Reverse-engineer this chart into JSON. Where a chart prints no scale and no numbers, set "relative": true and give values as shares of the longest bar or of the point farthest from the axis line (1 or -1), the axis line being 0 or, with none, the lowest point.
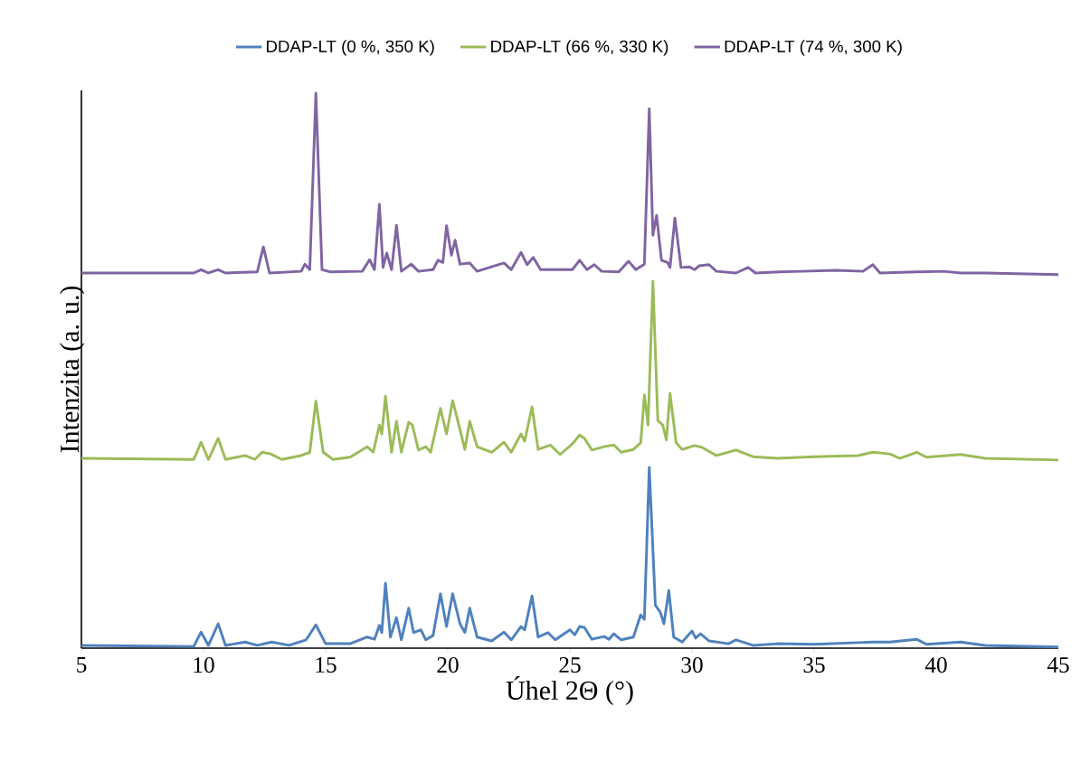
{
  "chart_data": {
    "type": "line",
    "relative": true,
    "xlabel": "Úhel 2Θ (°)",
    "ylabel": "Intenzita (a. u.)",
    "xlim": [
      5,
      45
    ],
    "xticks": [
      5,
      10,
      15,
      20,
      25,
      30,
      35,
      40,
      45
    ],
    "legend": "top",
    "grid": false,
    "series": [
      {
        "name": "DDAP-LT (0 %, 350 K)",
        "color": "#4f81bd",
        "x": [
          5,
          9.6,
          9.9,
          10.2,
          10.6,
          10.9,
          11.7,
          12.2,
          12.8,
          13.5,
          14.2,
          14.6,
          15.0,
          16.0,
          16.7,
          17.0,
          17.2,
          17.3,
          17.45,
          17.65,
          17.9,
          18.1,
          18.4,
          18.6,
          18.9,
          19.1,
          19.4,
          19.7,
          19.95,
          20.2,
          20.5,
          20.7,
          20.9,
          21.2,
          21.8,
          22.3,
          22.6,
          23.0,
          23.15,
          23.45,
          23.7,
          24.1,
          24.4,
          25.0,
          25.2,
          25.4,
          25.6,
          25.9,
          26.4,
          26.6,
          26.8,
          27.1,
          27.6,
          27.9,
          28.05,
          28.25,
          28.5,
          28.7,
          28.85,
          29.05,
          29.25,
          29.6,
          30.0,
          30.15,
          30.35,
          30.7,
          31.5,
          31.8,
          32.5,
          33.5,
          35,
          36.8,
          37.4,
          38.1,
          39.2,
          39.6,
          41,
          42,
          45
        ],
        "values": [
          0.005,
          0.003,
          0.029,
          0.005,
          0.044,
          0.005,
          0.011,
          0.005,
          0.011,
          0.005,
          0.015,
          0.042,
          0.008,
          0.008,
          0.02,
          0.016,
          0.041,
          0.028,
          0.117,
          0.02,
          0.055,
          0.015,
          0.072,
          0.028,
          0.033,
          0.015,
          0.023,
          0.098,
          0.039,
          0.098,
          0.044,
          0.028,
          0.072,
          0.02,
          0.013,
          0.029,
          0.015,
          0.039,
          0.033,
          0.094,
          0.02,
          0.028,
          0.015,
          0.033,
          0.024,
          0.039,
          0.037,
          0.016,
          0.021,
          0.016,
          0.026,
          0.015,
          0.02,
          0.06,
          0.052,
          0.326,
          0.077,
          0.065,
          0.044,
          0.104,
          0.02,
          0.011,
          0.031,
          0.018,
          0.026,
          0.013,
          0.008,
          0.015,
          0.005,
          0.008,
          0.007,
          0.01,
          0.011,
          0.011,
          0.016,
          0.007,
          0.011,
          0.005,
          0.002
        ]
      },
      {
        "name": "DDAP-LT (66 %, 330 K)",
        "color": "#9bbb59",
        "x": [
          5,
          9.6,
          9.9,
          10.2,
          10.6,
          10.9,
          11.7,
          12.1,
          12.4,
          12.75,
          13.2,
          14.0,
          14.35,
          14.6,
          14.9,
          15.3,
          16.0,
          16.7,
          16.95,
          17.2,
          17.3,
          17.45,
          17.7,
          17.9,
          18.1,
          18.4,
          18.55,
          18.8,
          19.1,
          19.3,
          19.7,
          19.95,
          20.2,
          20.5,
          20.7,
          20.9,
          21.2,
          21.8,
          22.3,
          22.6,
          23.0,
          23.15,
          23.45,
          23.7,
          24.2,
          24.6,
          25.1,
          25.4,
          25.6,
          25.9,
          26.4,
          26.8,
          27.1,
          27.6,
          27.9,
          28.05,
          28.2,
          28.4,
          28.6,
          28.8,
          28.95,
          29.1,
          29.35,
          29.6,
          30.1,
          30.4,
          31.0,
          31.8,
          32.5,
          33.5,
          35,
          36.8,
          37.4,
          38.1,
          38.5,
          39.2,
          39.6,
          41,
          42,
          45
        ],
        "values": [
          0.342,
          0.34,
          0.371,
          0.34,
          0.378,
          0.34,
          0.347,
          0.34,
          0.353,
          0.35,
          0.34,
          0.347,
          0.353,
          0.445,
          0.353,
          0.34,
          0.344,
          0.363,
          0.353,
          0.402,
          0.386,
          0.454,
          0.353,
          0.409,
          0.353,
          0.407,
          0.402,
          0.357,
          0.363,
          0.353,
          0.432,
          0.386,
          0.446,
          0.394,
          0.358,
          0.409,
          0.363,
          0.353,
          0.371,
          0.353,
          0.386,
          0.373,
          0.435,
          0.358,
          0.366,
          0.349,
          0.368,
          0.384,
          0.378,
          0.357,
          0.363,
          0.366,
          0.353,
          0.358,
          0.37,
          0.456,
          0.402,
          0.661,
          0.41,
          0.402,
          0.375,
          0.459,
          0.37,
          0.358,
          0.365,
          0.362,
          0.347,
          0.357,
          0.345,
          0.342,
          0.345,
          0.347,
          0.353,
          0.35,
          0.342,
          0.353,
          0.344,
          0.349,
          0.342,
          0.339
        ]
      },
      {
        "name": "DDAP-LT (74 %, 300 K)",
        "color": "#8064a2",
        "x": [
          5,
          9.6,
          9.9,
          10.2,
          10.6,
          10.9,
          12.2,
          12.45,
          12.7,
          14.0,
          14.15,
          14.35,
          14.6,
          14.85,
          15.2,
          16.5,
          16.8,
          17.0,
          17.2,
          17.35,
          17.5,
          17.7,
          17.9,
          18.1,
          18.5,
          18.8,
          19.4,
          19.6,
          19.8,
          19.95,
          20.15,
          20.3,
          20.5,
          20.9,
          21.2,
          22.3,
          22.6,
          23.0,
          23.25,
          23.5,
          23.8,
          25.1,
          25.4,
          25.7,
          26.0,
          26.3,
          27.0,
          27.4,
          27.7,
          28.05,
          28.25,
          28.4,
          28.55,
          28.75,
          29.0,
          29.1,
          29.3,
          29.55,
          29.9,
          30.1,
          30.3,
          30.7,
          31.0,
          31.8,
          32.3,
          32.6,
          33.6,
          34.5,
          35.9,
          37.0,
          37.4,
          37.7,
          39.2,
          40.3,
          41,
          42,
          45
        ],
        "values": [
          0.676,
          0.676,
          0.682,
          0.676,
          0.682,
          0.676,
          0.678,
          0.723,
          0.676,
          0.679,
          0.692,
          0.682,
          1,
          0.682,
          0.678,
          0.679,
          0.7,
          0.682,
          0.8,
          0.686,
          0.712,
          0.682,
          0.762,
          0.679,
          0.692,
          0.679,
          0.682,
          0.699,
          0.695,
          0.761,
          0.708,
          0.735,
          0.692,
          0.694,
          0.679,
          0.694,
          0.682,
          0.713,
          0.691,
          0.704,
          0.682,
          0.682,
          0.699,
          0.682,
          0.691,
          0.679,
          0.678,
          0.697,
          0.682,
          0.692,
          0.972,
          0.744,
          0.78,
          0.699,
          0.695,
          0.686,
          0.775,
          0.686,
          0.687,
          0.682,
          0.689,
          0.691,
          0.679,
          0.676,
          0.686,
          0.676,
          0.678,
          0.679,
          0.681,
          0.679,
          0.691,
          0.676,
          0.678,
          0.679,
          0.676,
          0.676,
          0.673
        ]
      }
    ]
  }
}
